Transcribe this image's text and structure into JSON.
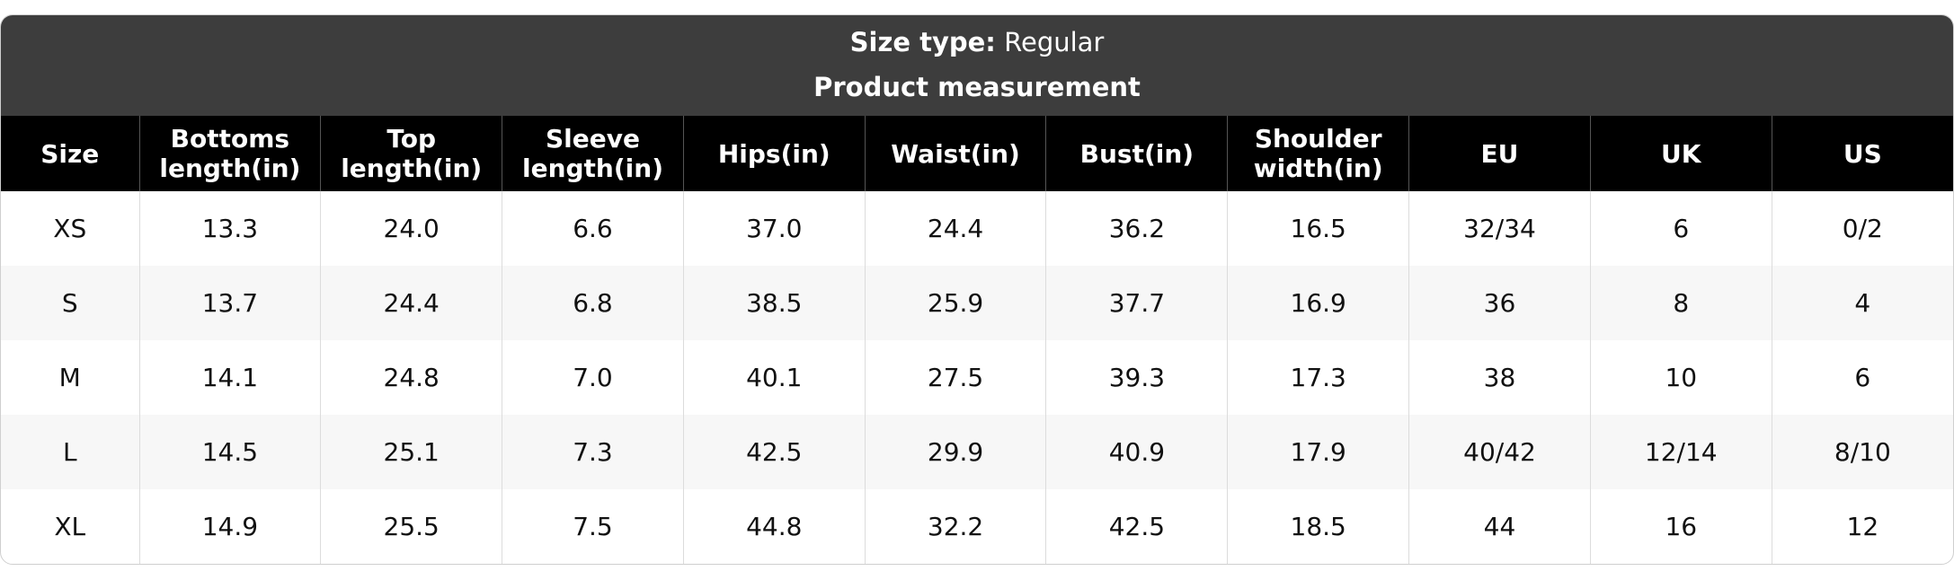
{
  "header": {
    "size_type_label": "Size type:",
    "size_type_value": "Regular",
    "subtitle": "Product measurement"
  },
  "table": {
    "columns": [
      "Size",
      "Bottoms length(in)",
      "Top length(in)",
      "Sleeve length(in)",
      "Hips(in)",
      "Waist(in)",
      "Bust(in)",
      "Shoulder width(in)",
      "EU",
      "UK",
      "US"
    ],
    "rows": [
      [
        "XS",
        "13.3",
        "24.0",
        "6.6",
        "37.0",
        "24.4",
        "36.2",
        "16.5",
        "32/34",
        "6",
        "0/2"
      ],
      [
        "S",
        "13.7",
        "24.4",
        "6.8",
        "38.5",
        "25.9",
        "37.7",
        "16.9",
        "36",
        "8",
        "4"
      ],
      [
        "M",
        "14.1",
        "24.8",
        "7.0",
        "40.1",
        "27.5",
        "39.3",
        "17.3",
        "38",
        "10",
        "6"
      ],
      [
        "L",
        "14.5",
        "25.1",
        "7.3",
        "42.5",
        "29.9",
        "40.9",
        "17.9",
        "40/42",
        "12/14",
        "8/10"
      ],
      [
        "XL",
        "14.9",
        "25.5",
        "7.5",
        "44.8",
        "32.2",
        "42.5",
        "18.5",
        "44",
        "16",
        "12"
      ]
    ]
  }
}
